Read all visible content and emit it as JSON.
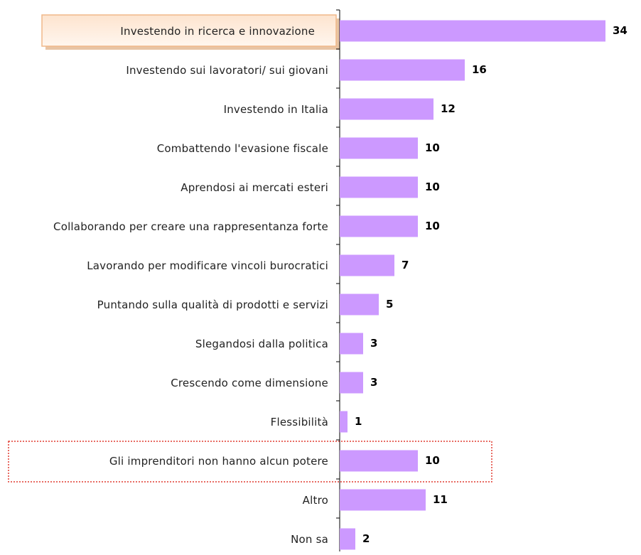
{
  "chart_data": {
    "type": "bar",
    "orientation": "horizontal",
    "categories": [
      "Investendo in ricerca e innovazione",
      "Investendo sui lavoratori/ sui giovani",
      "Investendo in Italia",
      "Combattendo l'evasione fiscale",
      "Aprendosi ai mercati esteri",
      "Collaborando per creare una rappresentanza forte",
      "Lavorando per modificare vincoli burocratici",
      "Puntando sulla qualità di prodotti e servizi",
      "Slegandosi dalla politica",
      "Crescendo come dimensione",
      "Flessibilità",
      "Gli imprenditori non hanno alcun potere",
      "Altro",
      "Non sa"
    ],
    "values": [
      34,
      16,
      12,
      10,
      10,
      10,
      7,
      5,
      3,
      3,
      1,
      10,
      11,
      2
    ],
    "color": "#cc99ff"
  }
}
